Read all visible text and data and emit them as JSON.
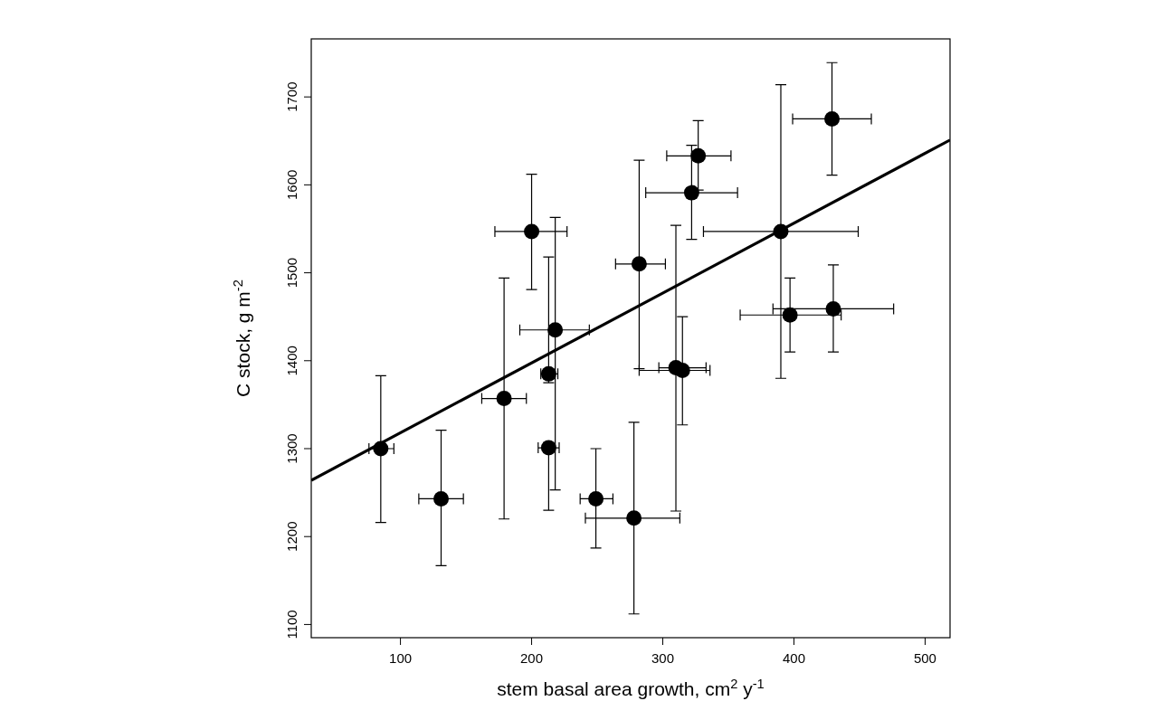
{
  "chart_data": {
    "type": "scatter",
    "xlabel": "stem basal area growth, cm$^{2}$ y$^{-1}$",
    "ylabel": "C stock, g m$^{-2}$",
    "xlim": [
      32,
      519
    ],
    "ylim": [
      1085,
      1766
    ],
    "xticks": [
      100,
      200,
      300,
      400,
      500
    ],
    "yticks": [
      1100,
      1200,
      1300,
      1400,
      1500,
      1600,
      1700
    ],
    "grid": false,
    "marker": "circle",
    "series": [
      {
        "color": "#000000",
        "x": [
          85,
          131,
          179,
          200,
          213,
          213,
          218,
          249,
          278,
          282,
          310,
          315,
          322,
          327,
          390,
          397,
          429,
          430
        ],
        "values": [
          1300,
          1243,
          1357,
          1547,
          1385,
          1301,
          1435,
          1243,
          1221,
          1510,
          1392,
          1389,
          1591,
          1633,
          1547,
          1452,
          1675,
          1459
        ],
        "errors": [
          [
            1216,
            1383
          ],
          [
            1167,
            1321
          ],
          [
            1220,
            1494
          ],
          [
            1481,
            1612
          ],
          [
            1375,
            1518
          ],
          [
            1230,
            1307
          ],
          [
            1253,
            1563
          ],
          [
            1187,
            1300
          ],
          [
            1112,
            1330
          ],
          [
            1391,
            1628
          ],
          [
            1229,
            1554
          ],
          [
            1327,
            1450
          ],
          [
            1538,
            1645
          ],
          [
            1594,
            1673
          ],
          [
            1380,
            1714
          ],
          [
            1410,
            1494
          ],
          [
            1611,
            1739
          ],
          [
            1410,
            1509
          ]
        ],
        "xerrors": [
          [
            76,
            95
          ],
          [
            114,
            148
          ],
          [
            162,
            196
          ],
          [
            172,
            227
          ],
          [
            207,
            220
          ],
          [
            205,
            221
          ],
          [
            191,
            244
          ],
          [
            237,
            262
          ],
          [
            241,
            313
          ],
          [
            264,
            302
          ],
          [
            297,
            333
          ],
          [
            282,
            336
          ],
          [
            287,
            357
          ],
          [
            303,
            352
          ],
          [
            331,
            449
          ],
          [
            359,
            436
          ],
          [
            399,
            459
          ],
          [
            384,
            476
          ]
        ]
      },
      {
        "type": "line",
        "color": "#000000",
        "x": [
          32,
          519
        ],
        "values": [
          1264,
          1651
        ],
        "marker": "none",
        "line_style": "solid"
      }
    ]
  }
}
